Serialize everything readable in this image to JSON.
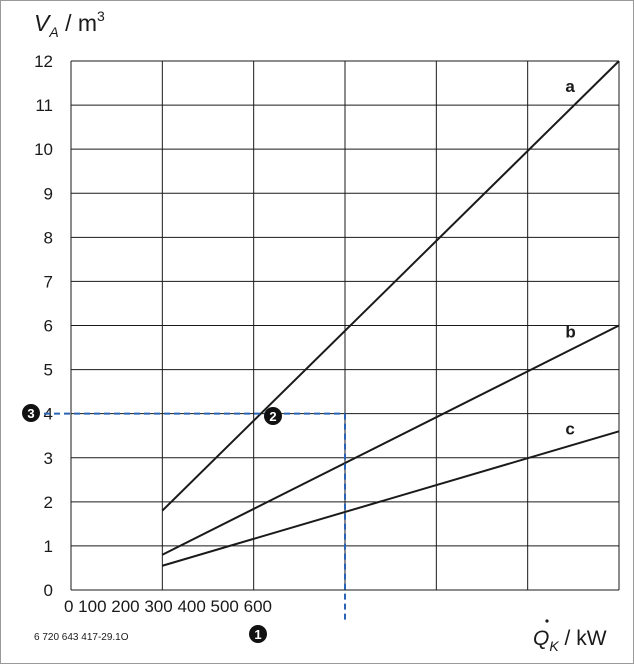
{
  "chart_data": {
    "type": "line",
    "ylabel_var": "V",
    "ylabel_sub": "A",
    "ylabel_unit": " / m",
    "ylabel_sup": "3",
    "xlabel_var": "Q",
    "xlabel_sub": "K",
    "xlabel_unit": " / kW",
    "x_tick_text": "0 100 200 300 400 500 600",
    "y_ticks": [
      "0",
      "1",
      "2",
      "3",
      "4",
      "5",
      "6",
      "7",
      "8",
      "9",
      "10",
      "11",
      "12"
    ],
    "xlim": [
      0,
      600
    ],
    "ylim": [
      0,
      12
    ],
    "grid": true,
    "series": [
      {
        "name": "a",
        "x": [
          100,
          600
        ],
        "y": [
          1.8,
          12
        ]
      },
      {
        "name": "b",
        "x": [
          100,
          600
        ],
        "y": [
          0.8,
          6
        ]
      },
      {
        "name": "c",
        "x": [
          100,
          600
        ],
        "y": [
          0.55,
          3.6
        ]
      }
    ],
    "example": {
      "x": 300,
      "y": 4,
      "marker_x": "1",
      "marker_point": "2",
      "marker_y": "3"
    },
    "figure_id": "6 720 643 417-29.1O",
    "colors": {
      "line": "#1a1a1a",
      "grid": "#1a1a1a",
      "guide": "#2b63b5",
      "marker": "#111111"
    }
  }
}
